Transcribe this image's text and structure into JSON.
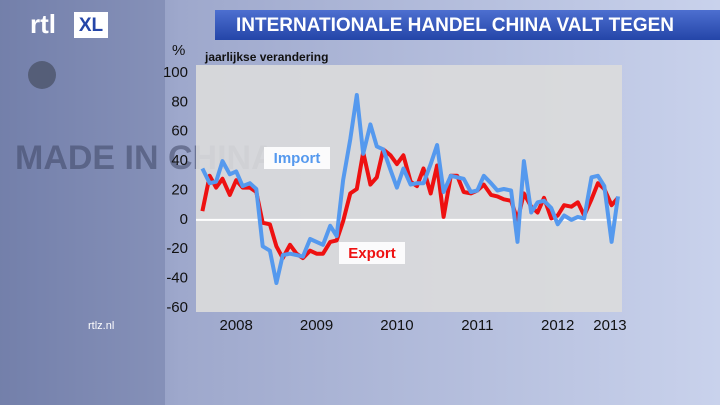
{
  "logo": {
    "main": "rtl",
    "badge": "XL"
  },
  "footer": "rtlz.nl",
  "background_text": "MADE IN CHINA",
  "chart_data": {
    "type": "line",
    "title": "INTERNATIONALE HANDEL CHINA VALT TEGEN",
    "subtitle": "jaarlijkse verandering",
    "y_label": "%",
    "x": [
      2008.08,
      2008.17,
      2008.25,
      2008.33,
      2008.42,
      2008.5,
      2008.58,
      2008.67,
      2008.75,
      2008.83,
      2008.92,
      2009.0,
      2009.08,
      2009.17,
      2009.25,
      2009.33,
      2009.42,
      2009.5,
      2009.58,
      2009.67,
      2009.75,
      2009.83,
      2009.92,
      2010.0,
      2010.08,
      2010.17,
      2010.25,
      2010.33,
      2010.42,
      2010.5,
      2010.58,
      2010.67,
      2010.75,
      2010.83,
      2010.92,
      2011.0,
      2011.08,
      2011.17,
      2011.25,
      2011.33,
      2011.42,
      2011.5,
      2011.58,
      2011.67,
      2011.75,
      2011.83,
      2011.92,
      2012.0,
      2012.08,
      2012.17,
      2012.25,
      2012.33,
      2012.42,
      2012.5,
      2012.58,
      2012.67,
      2012.75,
      2012.83,
      2012.92,
      2013.0,
      2013.08,
      2013.17,
      2013.25
    ],
    "series": [
      {
        "name": "Export",
        "color": "#ee1111",
        "values": [
          6,
          30,
          22,
          28,
          17,
          27,
          22,
          22,
          19,
          -2,
          -3,
          -18,
          -26,
          -17,
          -23,
          -26,
          -21,
          -23,
          -23,
          -15,
          -14,
          -1,
          18,
          21,
          46,
          24,
          29,
          48,
          44,
          38,
          44,
          26,
          23,
          35,
          18,
          37,
          2,
          30,
          30,
          19,
          18,
          20,
          24,
          17,
          16,
          14,
          13,
          0,
          18,
          9,
          5,
          15,
          1,
          3,
          10,
          9,
          12,
          3,
          14,
          25,
          21,
          10,
          15
        ]
      },
      {
        "name": "Import",
        "color": "#5599ee",
        "values": [
          35,
          25,
          26,
          40,
          31,
          33,
          23,
          25,
          21,
          -18,
          -21,
          -43,
          -24,
          -23,
          -24,
          -25,
          -13,
          -15,
          -17,
          -4,
          -11,
          27,
          55,
          85,
          45,
          65,
          50,
          48,
          34,
          22,
          35,
          24,
          25,
          25,
          38,
          51,
          19,
          30,
          29,
          28,
          19,
          20,
          30,
          25,
          20,
          21,
          20,
          -15,
          40,
          5,
          12,
          13,
          8,
          -3,
          3,
          0,
          2,
          1,
          29,
          30,
          23,
          -15,
          16
        ]
      }
    ],
    "xlim": [
      2008.0,
      2013.3
    ],
    "xticks": [
      {
        "value": 2008.5,
        "label": "2008"
      },
      {
        "value": 2009.5,
        "label": "2009"
      },
      {
        "value": 2010.5,
        "label": "2010"
      },
      {
        "value": 2011.5,
        "label": "2011"
      },
      {
        "value": 2012.5,
        "label": "2012"
      },
      {
        "value": 2013.15,
        "label": "2013"
      }
    ],
    "ylim": [
      -60,
      100
    ],
    "yticks": [
      -60,
      -40,
      -20,
      0,
      20,
      40,
      60,
      80,
      100
    ],
    "zero_line": true
  }
}
